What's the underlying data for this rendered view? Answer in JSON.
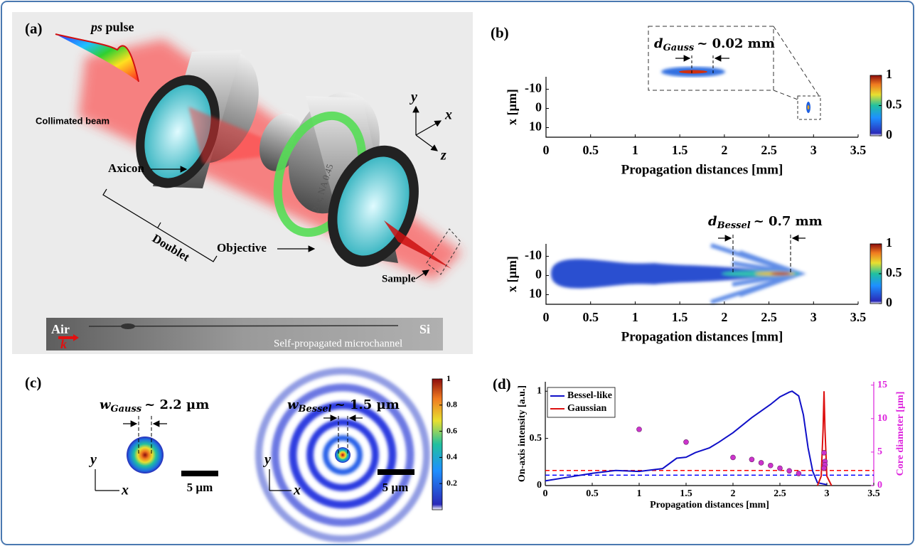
{
  "panel_a": {
    "label": "(a)",
    "pulse_prefix": "ps",
    "pulse": "pulse",
    "collimated": "Collimated beam",
    "axicon": "Axicon",
    "doublet": "Doublet",
    "objective": "Objective",
    "objective_spec": "20x, NA 0.45",
    "sample": "Sample",
    "axes": [
      "y",
      "x",
      "z"
    ],
    "air": "Air",
    "si": "Si",
    "k": "k",
    "microchannel": "Self-propagated microchannel"
  },
  "panel_b": {
    "label": "(b)",
    "heatmaps": [
      {
        "annotation": {
          "symbol": "d",
          "subscript": "Gauss",
          "text": "~ 0.02 mm"
        },
        "xlabel": "Propagation distances [mm]",
        "ylabel": "x [µm]",
        "xlim": [
          0,
          3.5
        ],
        "xticks": [
          0,
          0.5,
          1,
          1.5,
          2,
          2.5,
          3,
          3.5
        ],
        "ylim": [
          15,
          -16.5
        ],
        "yticks": [
          -10,
          0,
          10
        ],
        "colorbar": {
          "lim": [
            0,
            1
          ],
          "ticks": [
            0,
            0.5,
            1
          ]
        }
      },
      {
        "annotation": {
          "symbol": "d",
          "subscript": "Bessel",
          "text": "~ 0.7 mm"
        },
        "xlabel": "Propagation distances [mm]",
        "ylabel": "x [µm]",
        "xlim": [
          0,
          3.5
        ],
        "xticks": [
          0,
          0.5,
          1,
          1.5,
          2,
          2.5,
          3,
          3.5
        ],
        "ylim": [
          15,
          -16.5
        ],
        "yticks": [
          -10,
          0,
          10
        ],
        "colorbar": {
          "lim": [
            0,
            1
          ],
          "ticks": [
            0,
            0.5,
            1
          ]
        }
      }
    ]
  },
  "panel_c": {
    "label": "(c)",
    "images": [
      {
        "annotation": {
          "symbol": "w",
          "subscript": "Gauss",
          "text": "~ 2.2 µm"
        },
        "axes": [
          "y",
          "x"
        ],
        "scale_bar": "5 µm"
      },
      {
        "annotation": {
          "symbol": "w",
          "subscript": "Bessel",
          "text": "~ 1.5 µm"
        },
        "axes": [
          "y",
          "x"
        ],
        "scale_bar": "5 µm"
      }
    ],
    "colorbar": {
      "lim": [
        0,
        1
      ],
      "ticks": [
        0.2,
        0.4,
        0.6,
        0.8,
        1
      ]
    }
  },
  "chart_data": {
    "type": "line",
    "label": "(d)",
    "xlabel": "Propagation distances [mm]",
    "ylabel": "On-axis intensity [a.u.]",
    "y2label": "Core diameter [µm]",
    "xlim": [
      0,
      3.5
    ],
    "xticks": [
      0,
      0.5,
      1,
      1.5,
      2,
      2.5,
      3,
      3.5
    ],
    "ylim": [
      0,
      1.1
    ],
    "yticks": [
      0,
      0.5,
      1
    ],
    "y2lim": [
      0,
      15.5
    ],
    "y2ticks": [
      0,
      5,
      10,
      15
    ],
    "legend": "upper left",
    "series": [
      {
        "name": "Bessel-like",
        "color": "#1010c8",
        "x": [
          0,
          0.25,
          0.5,
          0.75,
          1,
          1.25,
          1.4,
          1.5,
          1.6,
          1.75,
          1.85,
          2,
          2.2,
          2.4,
          2.5,
          2.6,
          2.63,
          2.7,
          2.75,
          2.8,
          2.85,
          2.9,
          3
        ],
        "values": [
          0.05,
          0.09,
          0.13,
          0.16,
          0.15,
          0.18,
          0.29,
          0.3,
          0.35,
          0.4,
          0.46,
          0.56,
          0.72,
          0.86,
          0.94,
          0.99,
          1,
          0.95,
          0.75,
          0.4,
          0.15,
          0.03,
          0.01
        ]
      },
      {
        "name": "Gaussian",
        "color": "#dd1010",
        "x": [
          2.9,
          2.94,
          2.96,
          2.97,
          2.98,
          3,
          3.05
        ],
        "values": [
          0,
          0.1,
          0.6,
          1,
          0.6,
          0.1,
          0
        ]
      },
      {
        "type": "scatter",
        "axis": "y2",
        "color": "#cc33cc",
        "x": [
          1,
          1.5,
          2,
          2.2,
          2.3,
          2.4,
          2.5,
          2.6,
          2.7,
          2.97,
          2.98,
          2.98,
          2.97
        ],
        "values": [
          8.4,
          6.5,
          4.2,
          3.9,
          3.4,
          3,
          2.6,
          2.2,
          1.8,
          4.9,
          3.6,
          3.1,
          2.6
        ]
      }
    ],
    "reference_lines": [
      {
        "value": 0.16,
        "color": "#ff0000"
      },
      {
        "value": 0.11,
        "color": "#0000ff"
      }
    ]
  }
}
